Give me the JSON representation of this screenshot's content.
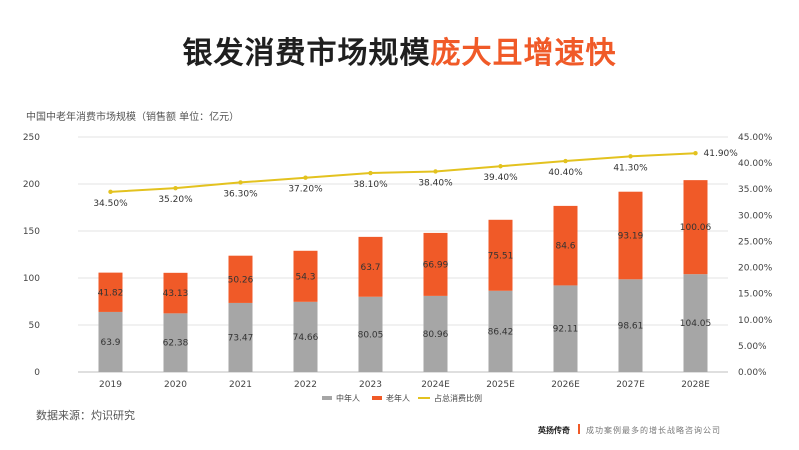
{
  "title": {
    "part1": "银发消费市场规模",
    "part2": "庞大且增速快",
    "accent_color": "#f05a28"
  },
  "source": "数据来源：灼识研究",
  "footer": {
    "brand": "英扬传奇",
    "tagline": "成功案例最多的增长战略咨询公司"
  },
  "chart_data": {
    "type": "bar",
    "stacked": true,
    "title": "中国中老年消费市场规模（销售额 单位：亿元）",
    "categories": [
      "2019",
      "2020",
      "2021",
      "2022",
      "2023",
      "2024E",
      "2025E",
      "2026E",
      "2027E",
      "2028E"
    ],
    "series": [
      {
        "name": "中年人",
        "type": "bar",
        "axis": "left",
        "color": "#a6a6a6",
        "values": [
          63.9,
          62.38,
          73.47,
          74.66,
          80.05,
          80.96,
          86.42,
          92.11,
          98.61,
          104.05
        ],
        "labels": [
          "63.9",
          "62.38",
          "73.47",
          "74.66",
          "80.05",
          "80.96",
          "86.42",
          "92.11",
          "98.61",
          "104.05"
        ]
      },
      {
        "name": "老年人",
        "type": "bar",
        "axis": "left",
        "color": "#f05a28",
        "values": [
          41.82,
          43.13,
          50.26,
          54.3,
          63.7,
          66.99,
          75.51,
          84.6,
          93.19,
          100.06
        ],
        "labels": [
          "41.82",
          "43.13",
          "50.26",
          "54.3",
          "63.7",
          "66.99",
          "75.51",
          "84.6",
          "93.19",
          "100.06"
        ]
      },
      {
        "name": "占总消费比例",
        "type": "line",
        "axis": "right",
        "color": "#e3c21f",
        "values": [
          34.5,
          35.2,
          36.3,
          37.2,
          38.1,
          38.4,
          39.4,
          40.4,
          41.3,
          41.9
        ],
        "labels": [
          "34.50%",
          "35.20%",
          "36.30%",
          "37.20%",
          "38.10%",
          "38.40%",
          "39.40%",
          "40.40%",
          "41.30%",
          "41.90%"
        ]
      }
    ],
    "y_left": {
      "ylim": [
        0,
        250
      ],
      "ticks": [
        "0",
        "50",
        "100",
        "150",
        "200",
        "250"
      ]
    },
    "y_right": {
      "ylim": [
        0,
        45
      ],
      "ticks": [
        "0.00%",
        "5.00%",
        "10.00%",
        "15.00%",
        "20.00%",
        "25.00%",
        "30.00%",
        "35.00%",
        "40.00%",
        "45.00%"
      ]
    },
    "grid": true,
    "legend_position": "bottom"
  }
}
